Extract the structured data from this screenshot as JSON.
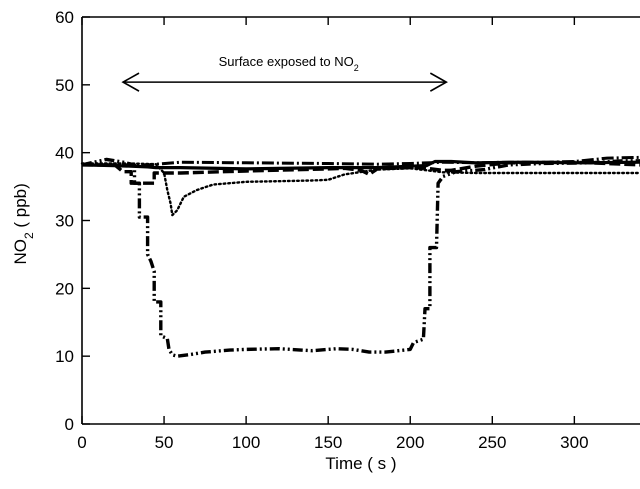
{
  "chart_data": {
    "type": "line",
    "xlabel": "Time ( s )",
    "ylabel": {
      "base": "NO",
      "sub": "2",
      "rest": " ( ppb)"
    },
    "xlim": [
      0,
      340
    ],
    "ylim": [
      0,
      60
    ],
    "xticks": [
      0,
      50,
      100,
      150,
      200,
      250,
      300
    ],
    "yticks": [
      0,
      10,
      20,
      30,
      40,
      50,
      60
    ],
    "grid": false,
    "annotation": {
      "text": "Surface exposed to NO",
      "sub": "2",
      "x_start": 25,
      "x_end": 222,
      "y": 50.4
    },
    "series": [
      {
        "style": "solid",
        "points": [
          [
            0,
            38.2
          ],
          [
            20,
            38.1
          ],
          [
            40,
            37.9
          ],
          [
            45,
            37.8
          ],
          [
            60,
            37.8
          ],
          [
            100,
            37.6
          ],
          [
            150,
            37.8
          ],
          [
            180,
            37.8
          ],
          [
            200,
            38.0
          ],
          [
            210,
            38.1
          ],
          [
            215,
            38.7
          ],
          [
            225,
            38.7
          ],
          [
            240,
            38.5
          ],
          [
            270,
            38.6
          ],
          [
            300,
            38.5
          ],
          [
            340,
            38.6
          ]
        ]
      },
      {
        "style": "dashed",
        "points": [
          [
            0,
            38.2
          ],
          [
            20,
            38.2
          ],
          [
            25,
            37.2
          ],
          [
            30,
            37.2
          ],
          [
            30,
            35.5
          ],
          [
            44,
            35.5
          ],
          [
            44,
            37.0
          ],
          [
            60,
            37.0
          ],
          [
            100,
            37.3
          ],
          [
            150,
            37.6
          ],
          [
            160,
            37.7
          ],
          [
            170,
            37.4
          ],
          [
            175,
            36.8
          ],
          [
            180,
            37.6
          ],
          [
            200,
            37.8
          ],
          [
            210,
            37.7
          ],
          [
            220,
            37.4
          ],
          [
            225,
            37.4
          ],
          [
            240,
            38.0
          ],
          [
            260,
            38.5
          ],
          [
            300,
            38.6
          ],
          [
            340,
            38.2
          ]
        ]
      },
      {
        "style": "dotted",
        "points": [
          [
            0,
            38.4
          ],
          [
            30,
            38.4
          ],
          [
            45,
            38.3
          ],
          [
            50,
            37.0
          ],
          [
            52,
            34.5
          ],
          [
            54,
            32.5
          ],
          [
            55,
            30.8
          ],
          [
            58,
            31.5
          ],
          [
            62,
            33.5
          ],
          [
            70,
            34.5
          ],
          [
            80,
            35.3
          ],
          [
            100,
            35.7
          ],
          [
            120,
            35.8
          ],
          [
            140,
            35.9
          ],
          [
            150,
            36.0
          ],
          [
            160,
            36.8
          ],
          [
            180,
            37.5
          ],
          [
            200,
            37.7
          ],
          [
            220,
            37.1
          ],
          [
            240,
            37.0
          ],
          [
            300,
            37.0
          ],
          [
            340,
            37.0
          ]
        ]
      },
      {
        "style": "dash-dot-dot",
        "points": [
          [
            0,
            38.2
          ],
          [
            15,
            39.0
          ],
          [
            25,
            38.6
          ],
          [
            32,
            38.2
          ],
          [
            32,
            35.5
          ],
          [
            35,
            35.5
          ],
          [
            35,
            30.5
          ],
          [
            40,
            30.5
          ],
          [
            40,
            25.0
          ],
          [
            42,
            24.0
          ],
          [
            44,
            22.5
          ],
          [
            44,
            18.0
          ],
          [
            48,
            18.0
          ],
          [
            48,
            13.0
          ],
          [
            52,
            12.6
          ],
          [
            53,
            11.0
          ],
          [
            55,
            10.2
          ],
          [
            58,
            10.0
          ],
          [
            65,
            10.2
          ],
          [
            75,
            10.6
          ],
          [
            90,
            10.9
          ],
          [
            100,
            11.0
          ],
          [
            120,
            11.1
          ],
          [
            140,
            10.8
          ],
          [
            155,
            11.1
          ],
          [
            165,
            11.0
          ],
          [
            175,
            10.6
          ],
          [
            185,
            10.6
          ],
          [
            200,
            11.0
          ],
          [
            202,
            12.0
          ],
          [
            208,
            12.5
          ],
          [
            209,
            17.0
          ],
          [
            212,
            17.0
          ],
          [
            212,
            26.0
          ],
          [
            216,
            26.0
          ],
          [
            217,
            35.5
          ],
          [
            220,
            36.5
          ],
          [
            228,
            37.2
          ],
          [
            245,
            37.5
          ],
          [
            260,
            38.2
          ],
          [
            280,
            38.4
          ],
          [
            310,
            38.5
          ],
          [
            330,
            38.8
          ],
          [
            340,
            38.8
          ]
        ]
      },
      {
        "style": "dash-dot",
        "points": [
          [
            0,
            38.2
          ],
          [
            40,
            38.2
          ],
          [
            60,
            38.6
          ],
          [
            100,
            38.5
          ],
          [
            150,
            38.4
          ],
          [
            180,
            38.3
          ],
          [
            200,
            38.4
          ],
          [
            220,
            38.6
          ],
          [
            240,
            38.5
          ],
          [
            260,
            38.6
          ],
          [
            280,
            38.6
          ],
          [
            300,
            38.7
          ],
          [
            320,
            39.2
          ],
          [
            340,
            39.3
          ]
        ]
      }
    ]
  }
}
